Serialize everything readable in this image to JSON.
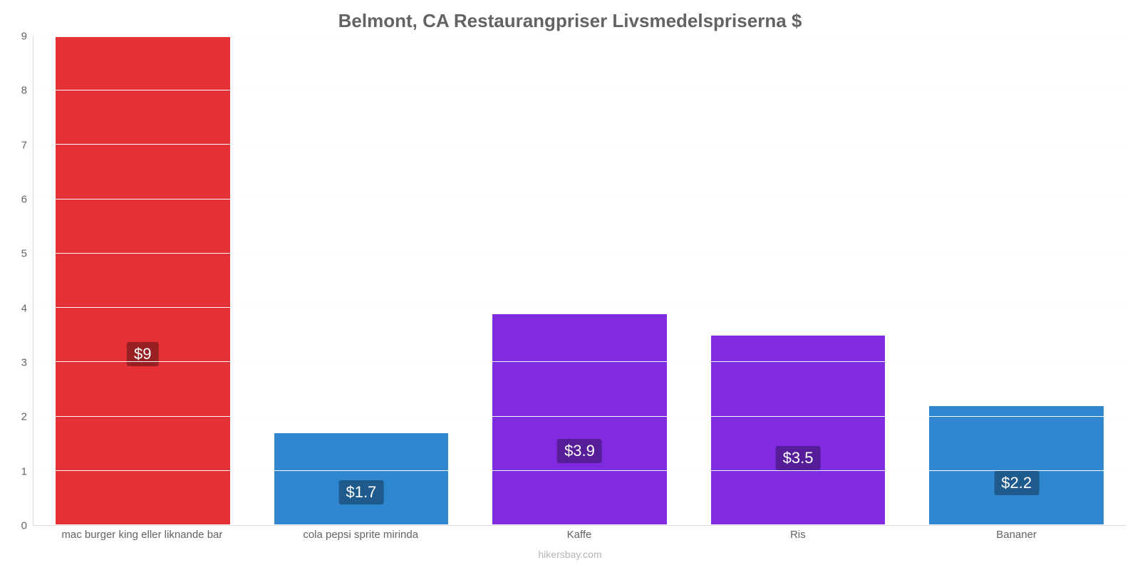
{
  "chart": {
    "type": "bar",
    "title": "Belmont, CA Restaurangpriser Livsmedelspriserna $",
    "title_fontsize": 26,
    "title_color": "#636363",
    "subtitle": "hikersbay.com",
    "subtitle_color": "#b5b5b5",
    "background_color": "#ffffff",
    "grid_color": "#fafafa",
    "axis_line_color": "#d8d8d8",
    "tick_color": "#636363",
    "tick_fontsize": 15,
    "ylim": [
      0,
      9
    ],
    "ytick_step": 1,
    "yticks": [
      0,
      1,
      2,
      3,
      4,
      5,
      6,
      7,
      8,
      9
    ],
    "bar_width": 0.7,
    "categories": [
      "mac burger king eller liknande bar",
      "cola pepsi sprite mirinda",
      "Kaffe",
      "Ris",
      "Bananer"
    ],
    "values": [
      9,
      1.7,
      3.9,
      3.5,
      2.2
    ],
    "value_labels": [
      "$9",
      "$1.7",
      "$3.9",
      "$3.5",
      "$2.2"
    ],
    "bar_colors": [
      "#e63237",
      "#2f87d0",
      "#802be2",
      "#802be2",
      "#2f87d0"
    ],
    "value_label_bg": [
      "#982023",
      "#1e5a8b",
      "#551d97",
      "#551d97",
      "#1e5a8b"
    ],
    "value_label_color": "#ffffff",
    "value_label_fontsize": 22
  }
}
